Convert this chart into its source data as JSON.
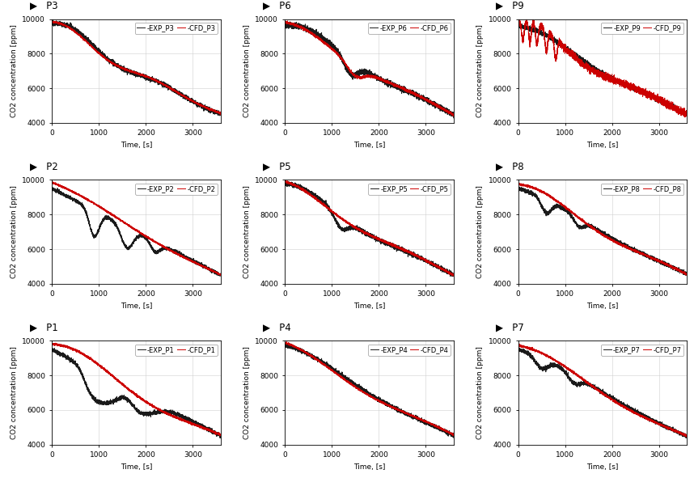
{
  "panels": [
    {
      "label": "P3",
      "row": 0,
      "col": 0
    },
    {
      "label": "P6",
      "row": 0,
      "col": 1
    },
    {
      "label": "P9",
      "row": 0,
      "col": 2
    },
    {
      "label": "P2",
      "row": 1,
      "col": 0
    },
    {
      "label": "P5",
      "row": 1,
      "col": 1
    },
    {
      "label": "P8",
      "row": 1,
      "col": 2
    },
    {
      "label": "P1",
      "row": 2,
      "col": 0
    },
    {
      "label": "P4",
      "row": 2,
      "col": 1
    },
    {
      "label": "P7",
      "row": 2,
      "col": 2
    }
  ],
  "ylim": [
    4000,
    10000
  ],
  "xlim": [
    0,
    3600
  ],
  "yticks": [
    4000,
    6000,
    8000,
    10000
  ],
  "xticks": [
    0,
    1000,
    2000,
    3000
  ],
  "ylabel": "CO2 concentration [ppm]",
  "xlabel": "Time, [s]",
  "exp_color": "#1a1a1a",
  "cfd_color": "#cc0000",
  "linewidth": 0.7,
  "title_fontsize": 8.5,
  "tick_fontsize": 6.5,
  "label_fontsize": 6.5,
  "legend_fontsize": 6.0,
  "background_color": "#ffffff"
}
